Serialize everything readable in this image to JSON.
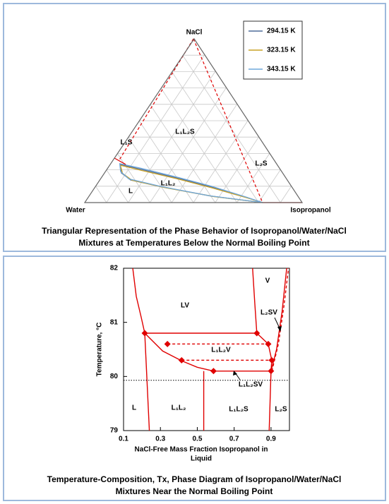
{
  "chart_data": [
    {
      "type": "ternary",
      "title": [
        "Triangular Representation of the Phase Behavior of Isopropanol/Water/NaCl",
        "Mixtures at Temperatures Below the Normal Boiling Point"
      ],
      "vertex_labels": {
        "top": "NaCl",
        "left": "Water",
        "right": "Isopropanol"
      },
      "region_labels": [
        "L₁L₂S",
        "L₁S",
        "L₂S",
        "L₁L₂",
        "L"
      ],
      "grid": true,
      "grid_ticks": [
        0.1,
        0.2,
        0.3,
        0.4,
        0.5,
        0.6,
        0.7,
        0.8,
        0.9
      ],
      "series": [
        {
          "name": "294.15 K",
          "color": "#4f6d9a",
          "isopropanol": [
            0.818,
            0.732,
            0.537,
            0.347,
            0.158,
            0.046,
            0.078,
            0.142,
            0.31,
            0.565,
            0.818
          ],
          "nacl": [
            0,
            0.03,
            0.095,
            0.151,
            0.203,
            0.233,
            0.181,
            0.138,
            0.095,
            0.039,
            0
          ]
        },
        {
          "name": "323.15 K",
          "color": "#c9a227",
          "isopropanol": [
            0.818,
            0.735,
            0.54,
            0.35,
            0.16,
            0.05,
            0.085,
            0.15,
            0.32,
            0.575,
            0.818
          ],
          "nacl": [
            0,
            0.028,
            0.09,
            0.146,
            0.197,
            0.228,
            0.178,
            0.136,
            0.092,
            0.037,
            0
          ]
        },
        {
          "name": "343.15 K",
          "color": "#6fa8dc",
          "isopropanol": [
            0.818,
            0.728,
            0.532,
            0.342,
            0.152,
            0.042,
            0.07,
            0.13,
            0.295,
            0.55,
            0.818
          ],
          "nacl": [
            0,
            0.033,
            0.1,
            0.157,
            0.21,
            0.238,
            0.19,
            0.145,
            0.1,
            0.042,
            0
          ]
        }
      ],
      "lines": [
        {
          "color": "#e00000",
          "dash": "dashed",
          "isopropanol": [
            0,
            0.029
          ],
          "nacl": [
            1,
            0.254
          ]
        },
        {
          "color": "#e00000",
          "dash": "solid",
          "isopropanol": [
            0,
            0.072
          ],
          "nacl": [
            0.272,
            0.233
          ]
        },
        {
          "color": "#e00000",
          "dash": "dashed",
          "isopropanol": [
            0,
            0.818
          ],
          "nacl": [
            1,
            0
          ]
        },
        {
          "color": "#e00000",
          "dash": "solid",
          "isopropanol": [
            0.818,
            1
          ],
          "nacl": [
            0,
            0
          ]
        }
      ]
    },
    {
      "type": "line",
      "title": [
        "Temperature-Composition, Tx, Phase Diagram of Isopropanol/Water/NaCl",
        "Mixtures Near the Normal Boiling Point"
      ],
      "x_label": [
        "NaCl-Free Mass Fraction Isopropanol in",
        "Liquid"
      ],
      "y_label": "Temperature, °C",
      "xlim": [
        0.1,
        1.0
      ],
      "xticks": [
        0.1,
        0.3,
        0.5,
        0.7,
        0.9
      ],
      "ylim": [
        79,
        82
      ],
      "yticks": [
        79,
        80,
        81,
        82
      ],
      "region_labels": [
        "LV",
        "V",
        "L₂SV",
        "L₁L₂V",
        "L₁L₂SV",
        "L",
        "L₁L₂",
        "L₁L₂S",
        "L₂S"
      ],
      "series": [
        {
          "color": "#e00000",
          "dash": "solid",
          "x": [
            0.15,
            0.169,
            0.196,
            0.215
          ],
          "values": [
            82,
            81.48,
            81.09,
            80.8
          ]
        },
        {
          "color": "#e00000",
          "dash": "solid",
          "x": [
            0.215,
            0.823
          ],
          "values": [
            80.8,
            80.8
          ]
        },
        {
          "color": "#e00000",
          "dash": "solid",
          "x": [
            0.215,
            0.24
          ],
          "values": [
            80.8,
            79
          ]
        },
        {
          "color": "#e00000",
          "dash": "solid",
          "x": [
            0.215,
            0.312,
            0.415,
            0.5,
            0.588
          ],
          "values": [
            80.8,
            80.47,
            80.29,
            80.17,
            80.1
          ]
        },
        {
          "color": "#e00000",
          "dash": "solid",
          "x": [
            0.588,
            0.9
          ],
          "values": [
            80.1,
            80.1
          ]
        },
        {
          "color": "#e00000",
          "dash": "solid",
          "x": [
            0.535,
            0.535
          ],
          "values": [
            80.1,
            79
          ]
        },
        {
          "color": "#e00000",
          "dash": "solid",
          "x": [
            0.8,
            0.812,
            0.823
          ],
          "values": [
            82,
            81.35,
            80.8
          ]
        },
        {
          "color": "#e00000",
          "dash": "solid",
          "x": [
            0.823,
            0.885,
            0.904,
            0.9
          ],
          "values": [
            80.8,
            80.6,
            80.3,
            80.1
          ]
        },
        {
          "color": "#e00000",
          "dash": "solid",
          "x": [
            0.9,
            0.89
          ],
          "values": [
            80.1,
            79
          ]
        },
        {
          "color": "#e00000",
          "dash": "solid",
          "x": [
            0.9,
            0.93,
            0.96,
            0.985
          ],
          "values": [
            80.1,
            80.5,
            81.2,
            82
          ]
        },
        {
          "color": "#e00000",
          "dash": "dashed",
          "x": [
            0.338,
            0.885
          ],
          "values": [
            80.6,
            80.6
          ]
        },
        {
          "color": "#e00000",
          "dash": "dashed",
          "x": [
            0.415,
            0.904
          ],
          "values": [
            80.3,
            80.3
          ]
        },
        {
          "color": "#e00000",
          "dash": "dashed",
          "x": [
            0.905,
            0.94,
            0.97,
            0.995
          ],
          "values": [
            80.1,
            80.6,
            81.3,
            82
          ]
        },
        {
          "color": "#000000",
          "dash": "dotted",
          "x": [
            0.1,
            1.0
          ],
          "values": [
            79.93,
            79.93
          ]
        },
        {
          "color": "#e00000",
          "marker": "diamond",
          "x": [
            0.215,
            0.823,
            0.338,
            0.885,
            0.415,
            0.904,
            0.588,
            0.9
          ],
          "values": [
            80.8,
            80.8,
            80.6,
            80.6,
            80.3,
            80.3,
            80.1,
            80.1
          ]
        }
      ]
    }
  ]
}
